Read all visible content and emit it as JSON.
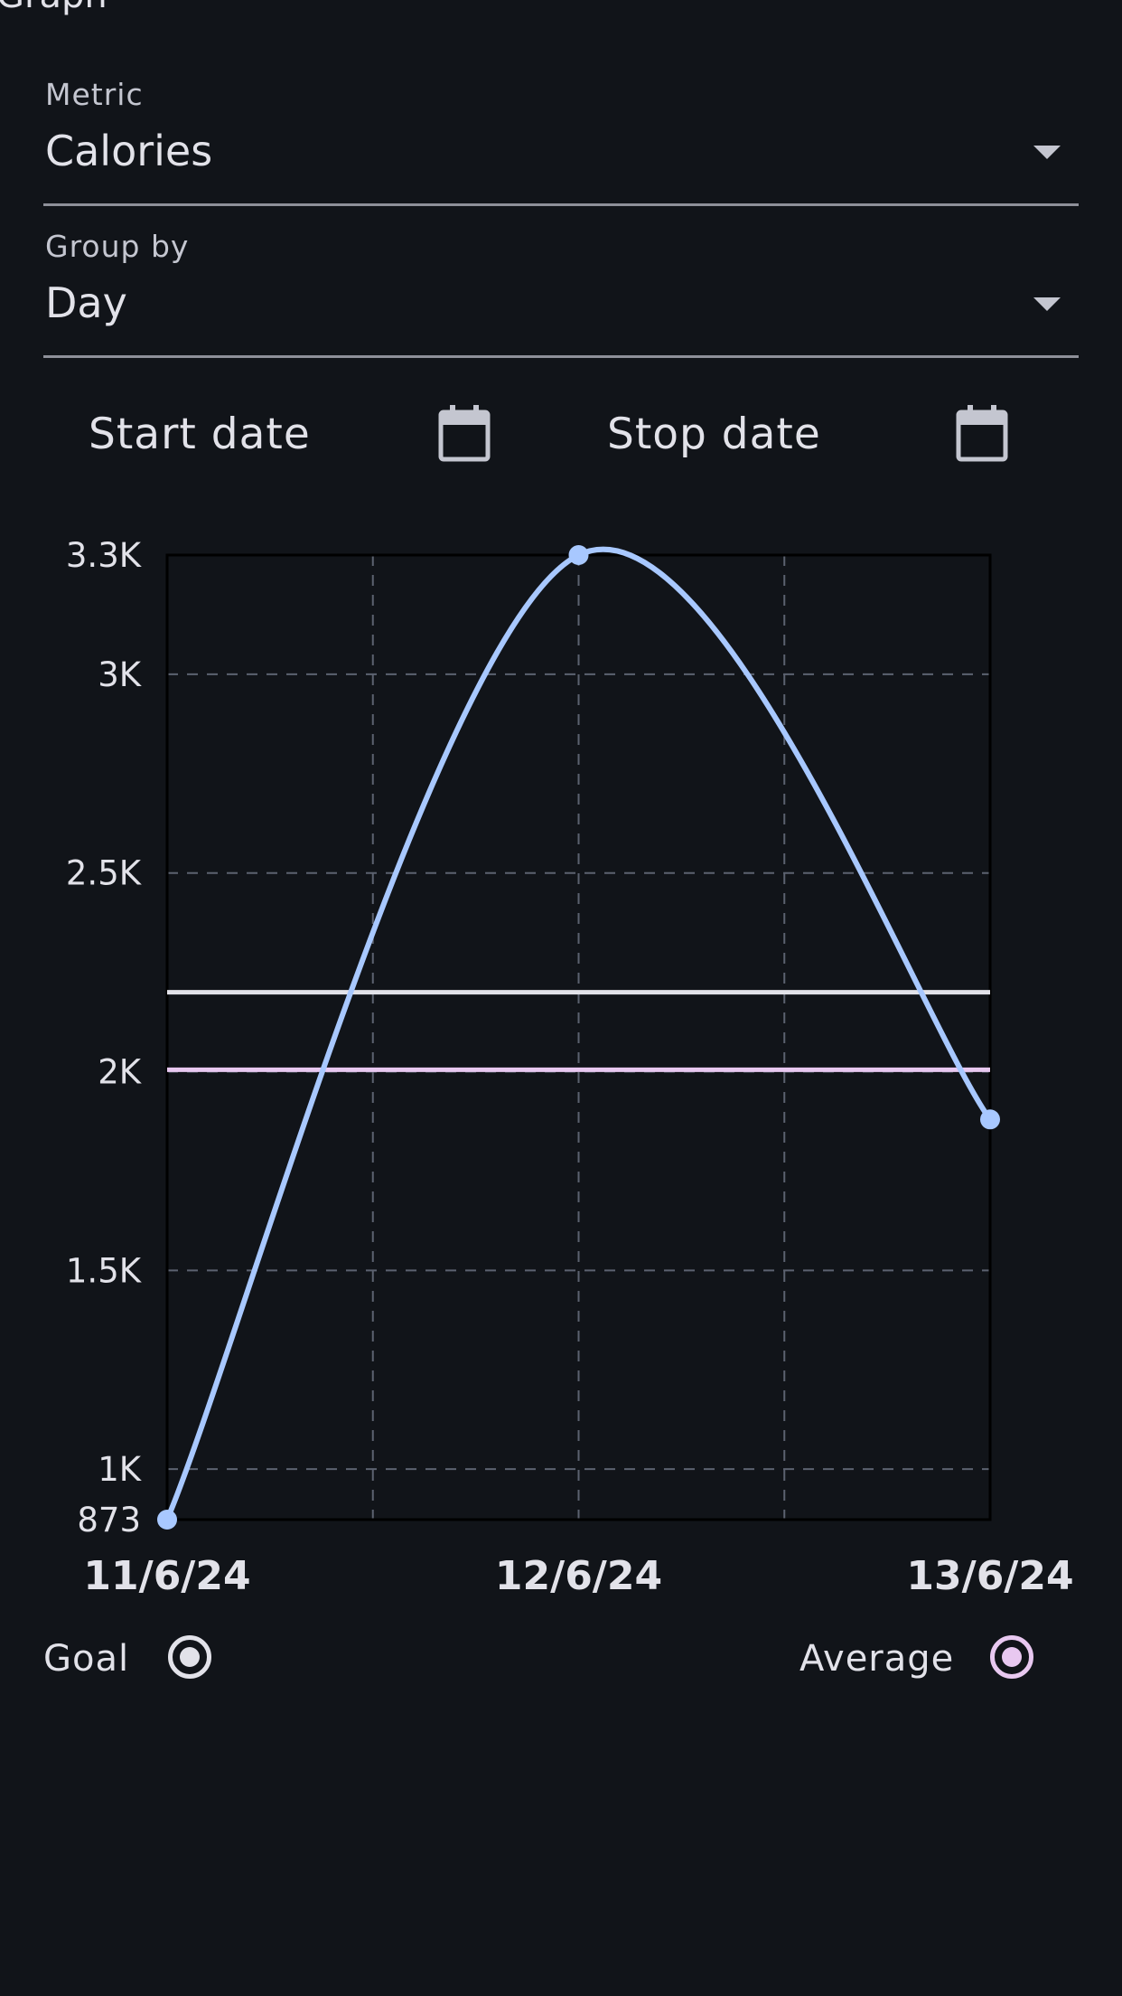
{
  "header": {
    "clipped_text": "Graph"
  },
  "metric": {
    "label": "Metric",
    "value": "Calories"
  },
  "group_by": {
    "label": "Group by",
    "value": "Day"
  },
  "dates": {
    "start_label": "Start date",
    "stop_label": "Stop date"
  },
  "colors": {
    "background": "#111419",
    "line": "#a8c8ff",
    "goal": "#e2e2e9",
    "average": "#e8c8f0",
    "grid": "#5c6270"
  },
  "chart_data": {
    "type": "line",
    "x": [
      "11/6/24",
      "12/6/24",
      "13/6/24"
    ],
    "series": [
      {
        "values": [
          873,
          3300,
          1880
        ],
        "smooth": true
      }
    ],
    "reference_lines": [
      {
        "name": "Goal",
        "value": 2200
      },
      {
        "name": "Average",
        "value": 2005
      }
    ],
    "ylim": [
      873,
      3300
    ],
    "y_ticks": [
      873,
      1000,
      1500,
      2000,
      2500,
      3000,
      3300
    ],
    "y_tick_labels": [
      "873",
      "1K",
      "1.5K",
      "2K",
      "2.5K",
      "3K",
      "3.3K"
    ],
    "grid": true
  },
  "legend": {
    "goal_label": "Goal",
    "average_label": "Average"
  }
}
